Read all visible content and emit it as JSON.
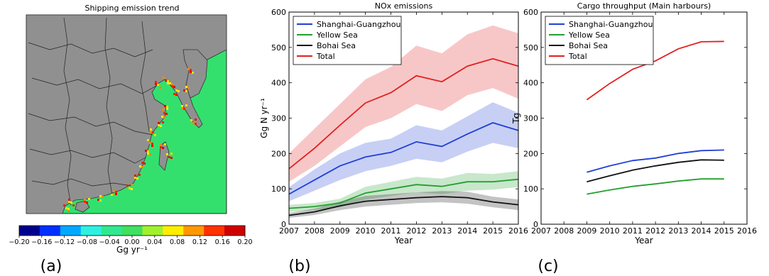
{
  "panels": {
    "a": {
      "label": "(a)",
      "title": "Shipping emission trend",
      "colorbar": {
        "ticks": [
          "−0.20",
          "−0.16",
          "−0.12",
          "−0.08",
          "−0.04",
          "0.00",
          "0.04",
          "0.08",
          "0.12",
          "0.16",
          "0.20"
        ],
        "unit": "Gg yr⁻¹",
        "colors": [
          "#00008f",
          "#0030ff",
          "#00a8ff",
          "#2ff0e0",
          "#30e890",
          "#40e060",
          "#a0f030",
          "#ffee00",
          "#ff9900",
          "#ff3300",
          "#d00000"
        ]
      },
      "land_color": "#909090",
      "sea_color": "#33e06e"
    },
    "b": {
      "label": "(b)"
    },
    "c": {
      "label": "(c)"
    }
  },
  "chart_data": [
    {
      "type": "line",
      "panel": "b",
      "title": "NOx emissions",
      "xlabel": "Year",
      "ylabel": "Gg N yr⁻¹",
      "xlim": [
        2007,
        2016
      ],
      "ylim": [
        0,
        600
      ],
      "xticks": [
        "2007",
        "2008",
        "2009",
        "2010",
        "2011",
        "2012",
        "2013",
        "2014",
        "2015",
        "2016"
      ],
      "yticks": [
        "0",
        "100",
        "200",
        "300",
        "400",
        "500",
        "600"
      ],
      "legend_position": "top-left",
      "x": [
        2007,
        2008,
        2009,
        2010,
        2011,
        2012,
        2013,
        2014,
        2015,
        2016
      ],
      "series": [
        {
          "name": "Shanghai-Guangzhou",
          "color": "#1f3fd6",
          "values": [
            85,
            125,
            165,
            190,
            203,
            233,
            220,
            255,
            287,
            265
          ],
          "lower": [
            65,
            95,
            125,
            150,
            165,
            185,
            175,
            205,
            230,
            215
          ],
          "upper": [
            105,
            155,
            200,
            230,
            242,
            280,
            265,
            305,
            345,
            315
          ]
        },
        {
          "name": "Yellow Sea",
          "color": "#22a02e",
          "values": [
            45,
            50,
            60,
            88,
            100,
            112,
            107,
            120,
            120,
            127
          ],
          "lower": [
            35,
            40,
            48,
            70,
            80,
            90,
            85,
            95,
            98,
            105
          ],
          "upper": [
            55,
            60,
            72,
            106,
            120,
            134,
            129,
            145,
            142,
            150
          ]
        },
        {
          "name": "Bohai Sea",
          "color": "#111111",
          "values": [
            25,
            35,
            52,
            65,
            70,
            75,
            78,
            75,
            63,
            55
          ],
          "lower": [
            18,
            26,
            40,
            50,
            55,
            60,
            62,
            58,
            48,
            40
          ],
          "upper": [
            32,
            44,
            64,
            80,
            85,
            90,
            94,
            92,
            78,
            70
          ]
        },
        {
          "name": "Total",
          "color": "#e02020",
          "values": [
            157,
            215,
            280,
            343,
            372,
            420,
            403,
            447,
            468,
            447
          ],
          "lower": [
            120,
            165,
            220,
            275,
            300,
            340,
            320,
            365,
            385,
            355
          ],
          "upper": [
            200,
            270,
            340,
            410,
            445,
            505,
            483,
            537,
            562,
            540
          ]
        }
      ]
    },
    {
      "type": "line",
      "panel": "c",
      "title": "Cargo throughput (Main harbours)",
      "xlabel": "Year",
      "ylabel": "Tg",
      "xlim": [
        2007,
        2016
      ],
      "ylim": [
        0,
        600
      ],
      "xticks": [
        "2007",
        "2008",
        "2009",
        "2010",
        "2011",
        "2012",
        "2013",
        "2014",
        "2015",
        "2016"
      ],
      "yticks": [
        "0",
        "100",
        "200",
        "300",
        "400",
        "500",
        "600"
      ],
      "legend_position": "top-left",
      "x": [
        2009,
        2010,
        2011,
        2012,
        2013,
        2014,
        2015
      ],
      "series": [
        {
          "name": "Shanghai-Guangzhou",
          "color": "#1f3fd6",
          "values": [
            147,
            165,
            180,
            187,
            200,
            208,
            210
          ]
        },
        {
          "name": "Yellow Sea",
          "color": "#22a02e",
          "values": [
            85,
            97,
            107,
            114,
            122,
            128,
            128
          ]
        },
        {
          "name": "Bohai Sea",
          "color": "#111111",
          "values": [
            120,
            137,
            153,
            165,
            175,
            182,
            181
          ]
        },
        {
          "name": "Total",
          "color": "#e02020",
          "values": [
            352,
            398,
            438,
            462,
            496,
            516,
            517
          ]
        }
      ]
    }
  ]
}
